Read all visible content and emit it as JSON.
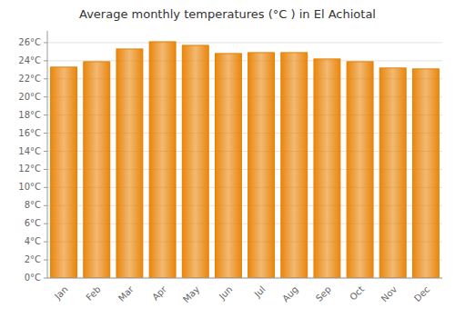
{
  "chart_data": {
    "type": "bar",
    "title": "Average monthly temperatures (°C ) in El Achiotal",
    "categories": [
      "Jan",
      "Feb",
      "Mar",
      "Apr",
      "May",
      "Jun",
      "Jul",
      "Aug",
      "Sep",
      "Oct",
      "Nov",
      "Dec"
    ],
    "values": [
      23.3,
      23.9,
      25.3,
      26.1,
      25.7,
      24.8,
      24.9,
      24.9,
      24.2,
      23.9,
      23.2,
      23.1
    ],
    "color": "#E88000",
    "ylim": [
      0,
      27.3
    ],
    "yticks": [
      {
        "value": 0,
        "label": "0°C"
      },
      {
        "value": 2,
        "label": "2°C"
      },
      {
        "value": 4,
        "label": "4°C"
      },
      {
        "value": 6,
        "label": "6°C"
      },
      {
        "value": 8,
        "label": "8°C"
      },
      {
        "value": 10,
        "label": "10°C"
      },
      {
        "value": 12,
        "label": "12°C"
      },
      {
        "value": 14,
        "label": "14°C"
      },
      {
        "value": 16,
        "label": "16°C"
      },
      {
        "value": 18,
        "label": "18°C"
      },
      {
        "value": 20,
        "label": "20°C"
      },
      {
        "value": 22,
        "label": "22°C"
      },
      {
        "value": 24,
        "label": "24°C"
      },
      {
        "value": 26,
        "label": "26°C"
      }
    ],
    "grid": true
  }
}
